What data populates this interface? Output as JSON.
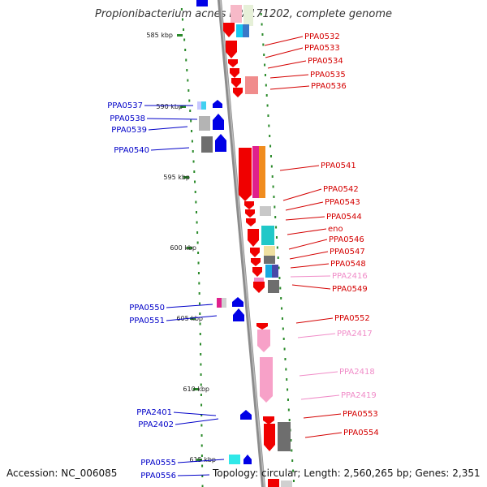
{
  "title": "Propionibacterium acnes KPA171202, complete genome",
  "accession": "Accession: NC_006085",
  "summary": "Topology: circular; Length: 2,560,265 bp; Genes: 2,351",
  "colors": {
    "backbone": "#8c8c8c",
    "tick": "#2a8a2a",
    "left_label": "#0000c8",
    "right_label": "#d40000",
    "pink_label": "#f08cc8"
  },
  "scale_labels": [
    "585 kbp",
    "590 kbp",
    "595 kbp",
    "600 kbp",
    "605 kbp",
    "610 kbp",
    "615 kbp"
  ],
  "left_genes": [
    "PPA0537",
    "PPA0538",
    "PPA0539",
    "PPA0540",
    "PPA0550",
    "PPA0551",
    "PPA2401",
    "PPA2402",
    "PPA0555",
    "PPA0556"
  ],
  "right_genes": [
    "PPA0532",
    "PPA0533",
    "PPA0534",
    "PPA0535",
    "PPA0536",
    "PPA0541",
    "PPA0542",
    "PPA0543",
    "PPA0544",
    "eno",
    "PPA0546",
    "PPA0547",
    "PPA0548",
    "PPA2416",
    "PPA0549",
    "PPA0552",
    "PPA2417",
    "PPA2418",
    "PPA2419",
    "PPA0553",
    "PPA0554"
  ]
}
